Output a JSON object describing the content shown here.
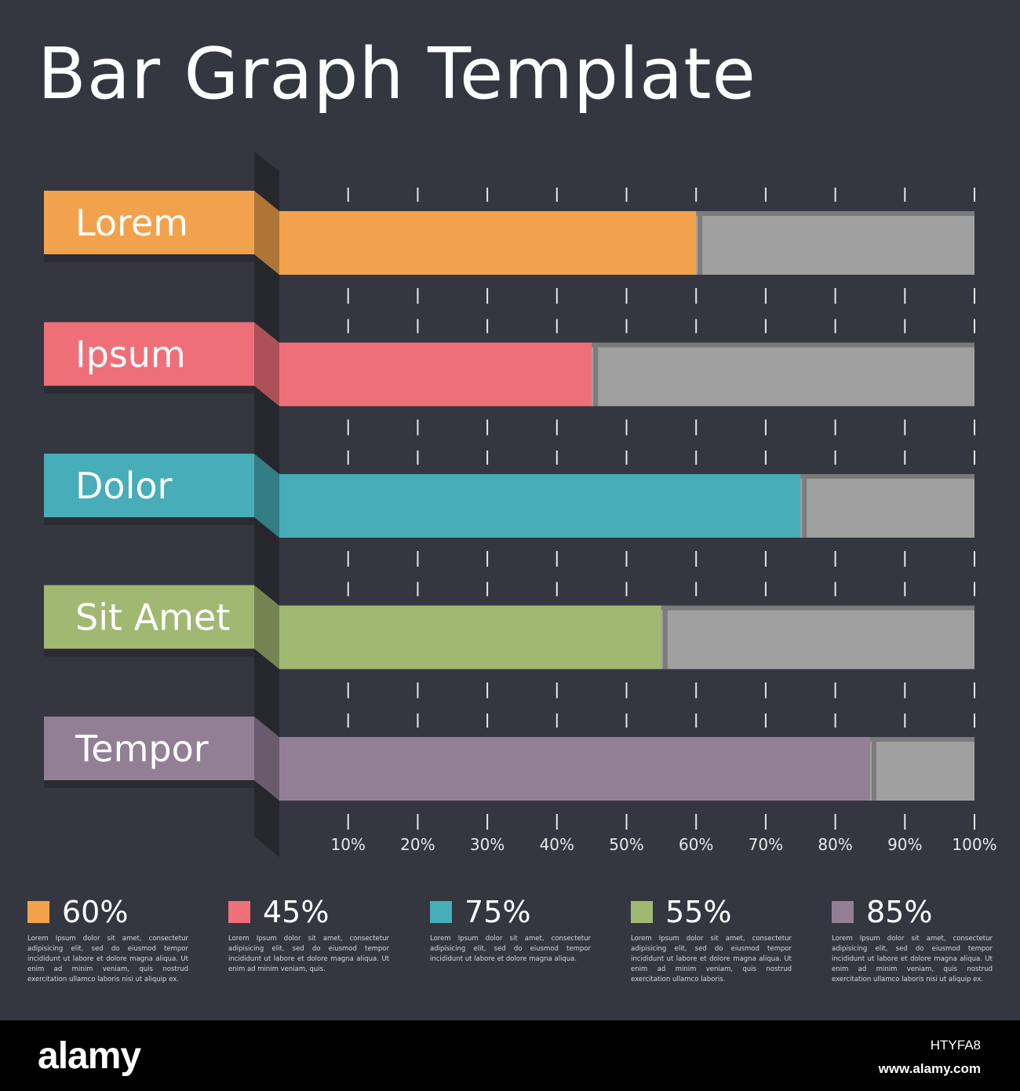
{
  "chart_data": {
    "type": "bar",
    "orientation": "horizontal",
    "title": "Bar Graph Template",
    "categories": [
      "Lorem",
      "Ipsum",
      "Dolor",
      "Sit Amet",
      "Tempor"
    ],
    "values": [
      60,
      45,
      75,
      55,
      85
    ],
    "xlim": [
      0,
      100
    ],
    "ticks": [
      10,
      20,
      30,
      40,
      50,
      60,
      70,
      80,
      90,
      100
    ],
    "tick_labels": [
      "10%",
      "20%",
      "30%",
      "40%",
      "50%",
      "60%",
      "70%",
      "80%",
      "90%",
      "100%"
    ],
    "colors": [
      "#f2a24c",
      "#ef6f79",
      "#47adb9",
      "#a0b872",
      "#927f96"
    ],
    "track_color": "#a0a0a0",
    "background": "#343640",
    "legend": {
      "placement": "bottom",
      "items": [
        {
          "value_label": "60%",
          "text": "Lorem Ipsum dolor sit amet, consectetur adipisicing elit, sed do eiusmod tempor incididunt ut labore et dolore magna aliqua. Ut enim ad minim veniam, quis nostrud exercitation ullamco laboris nisi ut aliquip ex."
        },
        {
          "value_label": "45%",
          "text": "Lorem Ipsum dolor sit amet, consectetur adipisicing elit, sed do eiusmod tempor incididunt ut labore et dolore magna aliqua. Ut enim ad minim veniam, quis."
        },
        {
          "value_label": "75%",
          "text": "Lorem Ipsum dolor sit amet, consectetur adipisicing elit, sed do eiusmod tempor incididunt ut labore et dolore magna aliqua."
        },
        {
          "value_label": "55%",
          "text": "Lorem Ipsum dolor sit amet, consectetur adipisicing elit, sed do eiusmod tempor incididunt ut labore et dolore magna aliqua. Ut enim ad minim veniam, quis nostrud exercitation ullamco laboris."
        },
        {
          "value_label": "85%",
          "text": "Lorem Ipsum dolor sit amet, consectetur adipisicing elit, sed do eiusmod tempor incididunt ut labore et dolore magna aliqua. Ut enim ad minim veniam, quis nostrud exercitation ullamco laboris nisi ut aliquip ex."
        }
      ]
    }
  },
  "footer": {
    "brand": "alamy",
    "image_code": "HTYFA8",
    "site": "www.alamy.com"
  }
}
